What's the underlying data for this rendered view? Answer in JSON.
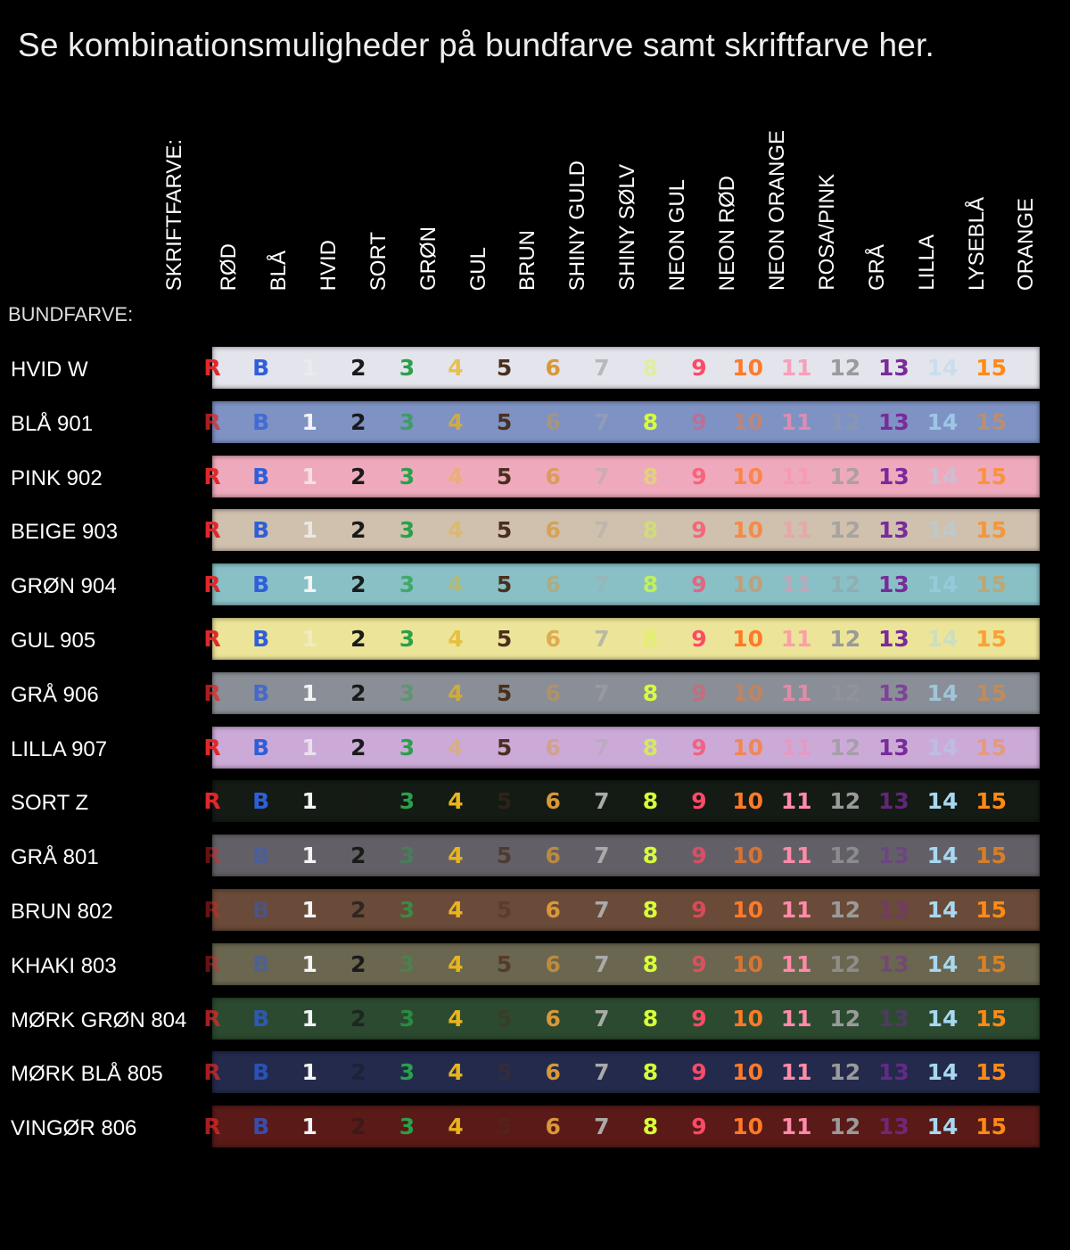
{
  "title": "Se kombinationsmuligheder på bundfarve samt skriftfarve her.",
  "skriftfarve_label": "SKRIFTFARVE:",
  "bundfarve_label": "BUNDFARVE:",
  "columns": [
    "RØD",
    "BLÅ",
    "HVID",
    "SORT",
    "GRØN",
    "GUL",
    "BRUN",
    "SHINY GULD",
    "SHINY SØLV",
    "NEON GUL",
    "NEON RØD",
    "NEON ORANGE",
    "ROSA/PINK",
    "GRÅ",
    "LILLA",
    "LYSEBLÅ",
    "ORANGE"
  ],
  "glyphs": [
    "R",
    "B",
    "1",
    "2",
    "3",
    "4",
    "5",
    "6",
    "7",
    "8",
    "9",
    "10",
    "11",
    "12",
    "13",
    "14",
    "15"
  ],
  "font_colors": [
    "#e0282a",
    "#2f5fd8",
    "#f4f4f4",
    "#1a1a1a",
    "#2aa04a",
    "#e8b41e",
    "#4a2f1e",
    "#d89838",
    "#aaaaaa",
    "#d6ff3a",
    "#ff4a66",
    "#ff7a28",
    "#ff8aaa",
    "#9a9a9a",
    "#7a2a9a",
    "#a8d8f0",
    "#ff8a14"
  ],
  "rows": [
    {
      "label": "HVID W",
      "bg": "#e4e4ec"
    },
    {
      "label": "BLÅ 901",
      "bg": "#7e92c4"
    },
    {
      "label": "PINK 902",
      "bg": "#eeaabc"
    },
    {
      "label": "BEIGE 903",
      "bg": "#d0c0ae"
    },
    {
      "label": "GRØN 904",
      "bg": "#88c0c6"
    },
    {
      "label": "GUL 905",
      "bg": "#ece498"
    },
    {
      "label": "GRÅ 906",
      "bg": "#8a8e96"
    },
    {
      "label": "LILLA 907",
      "bg": "#ccaad8"
    },
    {
      "label": "SORT Z",
      "bg": "#141a14"
    },
    {
      "label": "GRÅ 801",
      "bg": "#626066"
    },
    {
      "label": "BRUN 802",
      "bg": "#6a4a38"
    },
    {
      "label": "KHAKI 803",
      "bg": "#6a6650"
    },
    {
      "label": "MØRK GRØN 804",
      "bg": "#2c4a30"
    },
    {
      "label": "MØRK BLÅ 805",
      "bg": "#232a4c"
    },
    {
      "label": "VINGØR 806",
      "bg": "#5a1a18"
    }
  ]
}
